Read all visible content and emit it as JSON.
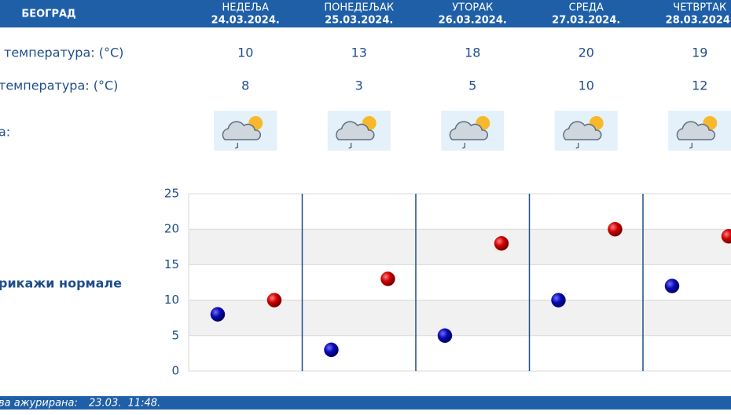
{
  "header": {
    "title": "БЕОГРАД"
  },
  "table": {
    "columns": [
      {
        "day": "НЕДЕЉА",
        "date": "24.03.2024."
      },
      {
        "day": "ПОНЕДЕЉАК",
        "date": "25.03.2024."
      },
      {
        "day": "УТОРАК",
        "date": "26.03.2024."
      },
      {
        "day": "СРЕДА",
        "date": "27.03.2024."
      },
      {
        "day": "ЧЕТВРТАК",
        "date": "28.03.2024."
      }
    ],
    "rows": [
      {
        "label": "температура: (°C)",
        "values": [
          10,
          13,
          18,
          20,
          19
        ]
      },
      {
        "label": "температура: (°C)",
        "values": [
          8,
          3,
          5,
          10,
          12
        ]
      },
      {
        "label": "а:"
      }
    ]
  },
  "toggle": "рикажи нормале",
  "chart_data": {
    "type": "dot",
    "series": [
      {
        "color": "#0a0ab4",
        "values": [
          8,
          3,
          5,
          10,
          12
        ]
      },
      {
        "color": "#d00000",
        "values": [
          10,
          13,
          18,
          20,
          19
        ]
      }
    ],
    "ylim": [
      0,
      25
    ],
    "yticks": [
      0,
      5,
      10,
      15,
      20,
      25
    ]
  },
  "footer": {
    "label": "ва ажурирана:",
    "time": "23.03.  11:48."
  }
}
